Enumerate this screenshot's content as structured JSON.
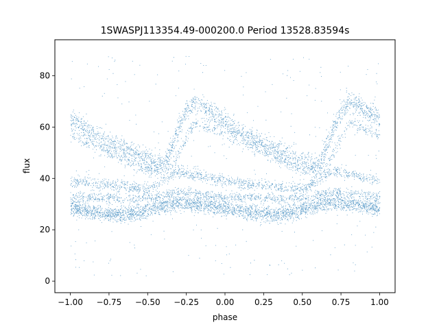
{
  "chart_data": {
    "type": "scatter",
    "title": "1SWASPJ113354.49-000200.0 Period 13528.83594s",
    "xlabel": "phase",
    "ylabel": "flux",
    "xlim": [
      -1.1,
      1.1
    ],
    "ylim": [
      -4.5,
      94
    ],
    "xticks": [
      "−1.00",
      "−0.75",
      "−0.50",
      "−0.25",
      "0.00",
      "0.25",
      "0.50",
      "0.75",
      "1.00"
    ],
    "xtick_values": [
      -1.0,
      -0.75,
      -0.5,
      -0.25,
      0.0,
      0.25,
      0.5,
      0.75,
      1.0
    ],
    "yticks": [
      "0",
      "20",
      "40",
      "60",
      "80"
    ],
    "ytick_values": [
      0,
      20,
      40,
      60,
      80
    ],
    "grid": false,
    "point_color": "#1f77b4",
    "series": [
      {
        "phase": [
          -1.0,
          -0.9,
          -0.8,
          -0.7,
          -0.6,
          -0.5,
          -0.45,
          -0.4,
          -0.35,
          -0.3,
          -0.25,
          -0.2,
          -0.15,
          -0.1,
          0.0,
          0.1,
          0.2,
          0.3,
          0.4,
          0.5,
          0.55,
          0.6,
          0.65,
          0.7,
          0.75,
          0.8,
          0.85,
          0.9,
          1.0
        ],
        "flux": [
          63,
          59,
          55.5,
          52.5,
          50,
          47.5,
          46,
          45,
          52,
          60,
          67,
          70,
          68,
          66,
          62,
          58,
          55,
          52,
          49.5,
          47,
          46,
          45,
          52,
          60,
          66,
          70,
          69,
          67,
          63
        ]
      },
      {
        "phase": [
          -1.0,
          -0.5,
          -0.35,
          -0.2,
          0.0,
          0.5,
          0.65,
          0.8,
          1.0
        ],
        "flux": [
          57,
          43,
          44,
          62,
          58,
          43,
          44,
          62,
          57
        ]
      },
      {
        "phase": [
          -1.0,
          -0.5,
          -0.3,
          0.0,
          0.5,
          0.7,
          1.0
        ],
        "flux": [
          39,
          36,
          43,
          39,
          36,
          43,
          39
        ]
      },
      {
        "phase": [
          -1.0,
          -0.6,
          -0.45,
          -0.3,
          0.0,
          0.4,
          0.55,
          0.7,
          1.0
        ],
        "flux": [
          33,
          32,
          33,
          35,
          33,
          32,
          33,
          35,
          33
        ]
      },
      {
        "phase": [
          -1.0,
          -0.85,
          -0.7,
          -0.55,
          -0.45,
          -0.3,
          -0.15,
          0.0,
          0.15,
          0.3,
          0.45,
          0.55,
          0.7,
          0.85,
          1.0
        ],
        "flux": [
          28.5,
          27,
          26,
          27,
          29,
          31,
          30,
          28.5,
          27,
          26,
          27,
          29,
          31,
          30,
          28.5
        ]
      }
    ]
  }
}
